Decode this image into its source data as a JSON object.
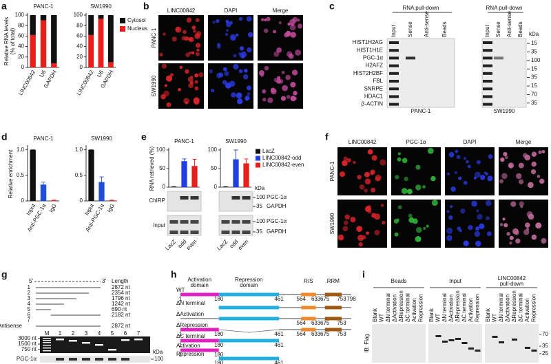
{
  "letters": [
    "a",
    "b",
    "c",
    "d",
    "e",
    "f",
    "g",
    "h",
    "i"
  ],
  "chart_data": [
    {
      "type": "stacked_bar",
      "title": "PANC-1",
      "ylabel": [
        "Relative RNA levels",
        "(% of total)"
      ],
      "categories": [
        "LINC00842",
        "U6",
        "GAPDH"
      ],
      "series": [
        {
          "color": "#e8201c",
          "values": [
            62,
            90,
            8
          ]
        },
        {
          "color": "#111111",
          "values": [
            38,
            10,
            92
          ]
        }
      ],
      "ylim": [
        0,
        100
      ],
      "yticks": [
        0,
        20,
        40,
        60,
        80,
        100
      ]
    },
    {
      "type": "stacked_bar",
      "title": "SW1990",
      "categories": [
        "LINC00842",
        "U6",
        "GAPDH"
      ],
      "series": [
        {
          "name": "Nucleus",
          "color": "#e8201c",
          "values": [
            62,
            93,
            10
          ]
        },
        {
          "name": "Cytosol",
          "color": "#111111",
          "values": [
            38,
            7,
            90
          ]
        }
      ],
      "ylim": [
        0,
        100
      ],
      "yticks": [
        0,
        20,
        40,
        60,
        80,
        100
      ]
    },
    {
      "type": "bar",
      "title": "PANC-1",
      "ylabel": "Relative enrichment",
      "categories": [
        "Input",
        "Anti-PGC-1α",
        "IgG"
      ],
      "colors": [
        "#111111",
        "#1f4fd8",
        "#e8201c"
      ],
      "values": [
        1,
        0.32,
        0.01
      ],
      "errors": [
        0,
        0.05,
        0.005
      ],
      "ylim": [
        0,
        1.05
      ],
      "yticks": [
        0,
        0.5,
        {
          "value": 1,
          "label": "1.0"
        }
      ]
    },
    {
      "type": "bar",
      "title": "SW1990",
      "categories": [
        "Input",
        "Anti-PGC-1α",
        "IgG"
      ],
      "colors": [
        "#111111",
        "#1f4fd8",
        "#e8201c"
      ],
      "values": [
        1,
        0.37,
        0.01
      ],
      "errors": [
        0,
        0.1,
        0.005
      ],
      "ylim": [
        0,
        1.05
      ],
      "yticks": [
        0,
        0.5,
        {
          "value": 1,
          "label": "1.0"
        }
      ]
    },
    {
      "type": "bar",
      "title": "PANC-1",
      "ylabel": "RNA retrieved (%)",
      "categories": [
        "LacZ",
        "odd",
        "even"
      ],
      "colors": [
        "#111111",
        "#1f3fe0",
        "#e8201c"
      ],
      "values": [
        1,
        70,
        57
      ],
      "errors": [
        0.5,
        6,
        18
      ],
      "ylim": [
        0,
        100
      ],
      "yticks": [
        0,
        50,
        100
      ]
    },
    {
      "type": "bar",
      "title": "SW1990",
      "categories": [
        "LacZ",
        "odd",
        "even"
      ],
      "colors": [
        "#111111",
        "#1f3fe0",
        "#e8201c"
      ],
      "values": [
        1,
        75,
        64
      ],
      "errors": [
        0.5,
        25,
        12
      ],
      "ylim": [
        0,
        100
      ],
      "yticks": [
        0,
        50,
        100
      ],
      "legend": [
        "LacZ",
        "LINC00842-odd",
        "LINC00842-even"
      ]
    }
  ],
  "b": {
    "columns": [
      "LINC00842",
      "DAPI",
      "Merge"
    ],
    "rows": [
      "PANC-1",
      "SW1990"
    ]
  },
  "c": {
    "blots": [
      {
        "header": "RNA pull-down",
        "lanes": [
          "Input",
          "Sense",
          "Anti-sense",
          "Beads"
        ],
        "cell": "PANC-1"
      },
      {
        "header": "RNA pull-down",
        "lanes": [
          "Input",
          "Sense",
          "Anti-sense",
          "Beads"
        ],
        "cell": "SW1990"
      }
    ],
    "proteins": [
      "HIST1H2AG",
      "HIST1H1E",
      "PGC-1α",
      "H2AFZ",
      "HIST2H2BF",
      "FBL",
      "SNRPE",
      "HDAC1",
      "β-ACTIN"
    ],
    "kda_label": "kDa",
    "kda": [
      15,
      35,
      100,
      15,
      35,
      15,
      70,
      35
    ]
  },
  "e_blot": {
    "rows": [
      "ChIRP",
      "Input"
    ],
    "proteins": [
      "PGC-1α",
      "GAPDH",
      "PGC-1α",
      "GAPDH"
    ],
    "kda_label": "kDa",
    "kda": [
      100,
      35,
      100,
      35
    ]
  },
  "f": {
    "columns": [
      "LINC00842",
      "PGC-1α",
      "DAPI",
      "Merge"
    ],
    "rows": [
      "PANC-1",
      "SW1990"
    ]
  },
  "g": {
    "five": "5'",
    "three": "3'",
    "length_label": "Length",
    "constructs": [
      {
        "label": "1",
        "length": "2872 nt"
      },
      {
        "label": "2",
        "length": "2354 nt"
      },
      {
        "label": "3",
        "length": "1796 nt"
      },
      {
        "label": "4",
        "length": "1242 nt"
      },
      {
        "label": "5",
        "length": "690 nt"
      },
      {
        "label": "6",
        "length": "2182 nt"
      },
      {
        "label": "Antisense",
        "length": "2872 nt"
      }
    ],
    "antisense_number": "7",
    "lanes": [
      "M",
      "1",
      "2",
      "3",
      "4",
      "5",
      "6",
      "7"
    ],
    "markers": [
      "3000 nt",
      "1500 nt",
      "750 nt"
    ],
    "blot": "PGC-1α",
    "kda_label": "kDa",
    "kda": 100
  },
  "h": {
    "activation": [
      "Activation",
      "domain"
    ],
    "repression": [
      "Repression",
      "domain"
    ],
    "rs": "R/S",
    "rrm": "RRM",
    "constructs": [
      {
        "label": "WT",
        "numbers": [
          1,
          180,
          461,
          564,
          633,
          675,
          753,
          798
        ]
      },
      {
        "label": "ΔN terminal"
      },
      {
        "label": "ΔActivation",
        "numbers": [
          564,
          633,
          675,
          753
        ]
      },
      {
        "label": "ΔRepression",
        "numbers": [
          1,
          180,
          461,
          564,
          633,
          675,
          753
        ]
      },
      {
        "label": "ΔC terminal",
        "numbers": [
          1,
          180,
          461
        ]
      },
      {
        "label": "Activation",
        "numbers": [
          1,
          180
        ]
      },
      {
        "label": "Repression",
        "numbers": [
          180,
          461
        ]
      }
    ]
  },
  "i": {
    "groups": [
      {
        "title": [
          "Beads"
        ],
        "lanes": [
          "Blank",
          "WT",
          "ΔN terminal",
          "ΔActivation",
          "ΔRepression",
          "ΔC terminal",
          "Activation",
          "Repression"
        ]
      },
      {
        "title": [
          "Input"
        ],
        "lanes": [
          "Blank",
          "WT",
          "ΔN terminal",
          "ΔActivation",
          "ΔRepression",
          "ΔC terminal",
          "Activation",
          "Repression"
        ]
      },
      {
        "title": [
          "LINC00842",
          "pull-down"
        ],
        "lanes": [
          "Blank",
          "WT",
          "ΔN terminal",
          "ΔActivation",
          "ΔRepression",
          "ΔC terminal",
          "Activation",
          "Repression"
        ]
      }
    ],
    "ib": "IB: Flag",
    "kda": [
      70,
      35,
      25
    ]
  }
}
